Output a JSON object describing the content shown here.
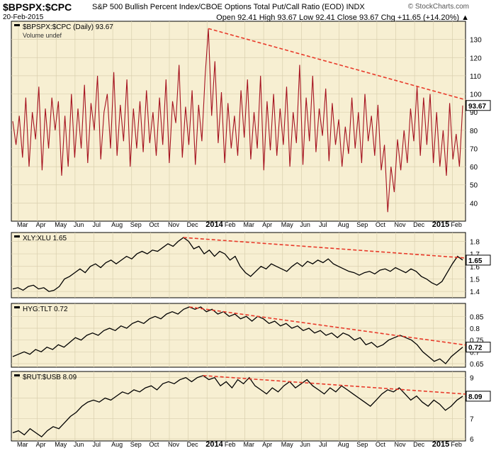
{
  "header": {
    "symbol": "$BPSPX:$CPC",
    "description": "S&P 500 Bullish Percent Index/CBOE Options Total Put/Call Ratio (EOD)  INDX",
    "date": "20-Feb-2015",
    "ohlc": "Open 92.41  High 93.67  Low 92.41  Close 93.67  Chg +11.65 (+14.20%) ▲",
    "source": "© StockCharts.com"
  },
  "colors": {
    "panel_bg": "#f7efd2",
    "grid": "#d9cfae",
    "border": "#000000",
    "bar_color": "#a5121f",
    "trend": "#e83a2a",
    "line": "#000000"
  },
  "x_axis": {
    "labels": [
      "Mar",
      "Apr",
      "May",
      "Jun",
      "Jul",
      "Aug",
      "Sep",
      "Oct",
      "Nov",
      "Dec",
      "2014",
      "Feb",
      "Mar",
      "Apr",
      "May",
      "Jun",
      "Jul",
      "Aug",
      "Sep",
      "Oct",
      "Nov",
      "Dec",
      "2015",
      "Feb"
    ],
    "bold_labels": [
      "2014",
      "2015"
    ]
  },
  "chart_data": [
    {
      "type": "line",
      "name": "panel-bpspx-cpc",
      "legend": "$BPSPX:$CPC (Daily) 93.67",
      "legend2": "Volume undef",
      "ylim": [
        30,
        140
      ],
      "yticks": [
        40,
        50,
        60,
        70,
        80,
        90,
        100,
        110,
        120,
        130
      ],
      "last_value": "93.67",
      "series": [
        {
          "values": [
            85,
            72,
            88,
            65,
            98,
            60,
            90,
            75,
            104,
            58,
            92,
            70,
            98,
            80,
            96,
            55,
            88,
            60,
            100,
            65,
            92,
            70,
            105,
            62,
            95,
            80,
            110,
            64,
            90,
            100,
            70,
            112,
            66,
            94,
            74,
            108,
            60,
            92,
            70,
            96,
            68,
            102,
            73,
            90,
            66,
            98,
            72,
            108,
            62,
            96,
            84,
            116,
            65,
            93,
            72,
            102,
            61,
            94,
            74,
            110,
            136,
            88,
            118,
            73,
            101,
            62,
            95,
            70,
            88,
            66,
            102,
            76,
            108,
            64,
            90,
            70,
            110,
            58,
            96,
            69,
            100,
            66,
            92,
            72,
            104,
            60,
            90,
            73,
            116,
            61,
            98,
            74,
            110,
            68,
            92,
            77,
            103,
            63,
            95,
            72,
            86,
            60,
            82,
            67,
            98,
            70,
            90,
            62,
            100,
            74,
            88,
            66,
            94,
            58,
            72,
            35,
            60,
            46,
            75,
            58,
            80,
            62,
            92,
            74,
            104,
            66,
            98,
            72,
            100,
            62,
            90,
            60,
            80,
            55,
            95,
            64,
            78,
            60,
            93.67
          ]
        }
      ]
    },
    {
      "type": "line",
      "name": "panel-xly-xlu",
      "legend": "XLY:XLU 1.65",
      "ylim": [
        1.35,
        1.87
      ],
      "yticks": [
        1.4,
        1.5,
        1.6,
        1.7,
        1.8
      ],
      "last_value": "1.65",
      "series": [
        {
          "values": [
            1.42,
            1.43,
            1.41,
            1.44,
            1.45,
            1.42,
            1.43,
            1.4,
            1.41,
            1.44,
            1.5,
            1.52,
            1.55,
            1.58,
            1.55,
            1.6,
            1.62,
            1.59,
            1.63,
            1.65,
            1.62,
            1.65,
            1.68,
            1.66,
            1.7,
            1.72,
            1.7,
            1.73,
            1.72,
            1.75,
            1.78,
            1.76,
            1.8,
            1.83,
            1.8,
            1.74,
            1.76,
            1.7,
            1.73,
            1.68,
            1.72,
            1.7,
            1.65,
            1.68,
            1.6,
            1.55,
            1.52,
            1.56,
            1.6,
            1.58,
            1.62,
            1.6,
            1.58,
            1.56,
            1.6,
            1.63,
            1.6,
            1.64,
            1.62,
            1.65,
            1.63,
            1.66,
            1.62,
            1.6,
            1.58,
            1.56,
            1.55,
            1.53,
            1.55,
            1.56,
            1.54,
            1.57,
            1.58,
            1.56,
            1.59,
            1.57,
            1.55,
            1.58,
            1.56,
            1.52,
            1.5,
            1.47,
            1.45,
            1.48,
            1.55,
            1.62,
            1.68,
            1.65
          ]
        }
      ]
    },
    {
      "type": "line",
      "name": "panel-hyg-tlt",
      "legend": "HYG:TLT 0.72",
      "ylim": [
        0.635,
        0.905
      ],
      "yticks": [
        0.65,
        0.7,
        0.75,
        0.8,
        0.85
      ],
      "last_value": "0.72",
      "series": [
        {
          "values": [
            0.68,
            0.69,
            0.7,
            0.69,
            0.71,
            0.7,
            0.72,
            0.71,
            0.73,
            0.72,
            0.74,
            0.76,
            0.75,
            0.77,
            0.78,
            0.77,
            0.79,
            0.8,
            0.79,
            0.81,
            0.8,
            0.82,
            0.83,
            0.82,
            0.84,
            0.85,
            0.84,
            0.86,
            0.87,
            0.86,
            0.88,
            0.89,
            0.88,
            0.89,
            0.87,
            0.88,
            0.86,
            0.87,
            0.85,
            0.86,
            0.84,
            0.85,
            0.83,
            0.85,
            0.84,
            0.82,
            0.83,
            0.81,
            0.82,
            0.8,
            0.81,
            0.79,
            0.8,
            0.78,
            0.79,
            0.77,
            0.78,
            0.76,
            0.78,
            0.77,
            0.75,
            0.76,
            0.73,
            0.74,
            0.72,
            0.73,
            0.75,
            0.76,
            0.77,
            0.76,
            0.75,
            0.73,
            0.7,
            0.68,
            0.66,
            0.67,
            0.65,
            0.68,
            0.7,
            0.72
          ]
        }
      ]
    },
    {
      "type": "line",
      "name": "panel-rut-usb",
      "legend": "$RUT:$USB 8.09",
      "ylim": [
        5.9,
        9.3
      ],
      "yticks": [
        6,
        7,
        8,
        9
      ],
      "last_value": "8.09",
      "series": [
        {
          "values": [
            6.3,
            6.4,
            6.2,
            6.5,
            6.3,
            6.1,
            6.4,
            6.6,
            6.5,
            6.8,
            7.1,
            7.3,
            7.6,
            7.8,
            7.9,
            7.8,
            8.0,
            7.9,
            8.1,
            8.3,
            8.2,
            8.4,
            8.3,
            8.5,
            8.6,
            8.4,
            8.7,
            8.8,
            8.7,
            8.9,
            9.0,
            8.8,
            9.0,
            9.1,
            8.9,
            9.0,
            8.6,
            8.8,
            8.5,
            8.9,
            8.7,
            9.0,
            8.6,
            8.4,
            8.2,
            8.5,
            8.3,
            8.6,
            8.8,
            8.5,
            8.7,
            8.9,
            8.6,
            8.4,
            8.2,
            8.5,
            8.3,
            8.6,
            8.4,
            8.2,
            8.0,
            7.8,
            7.6,
            7.9,
            8.2,
            8.4,
            8.3,
            8.5,
            8.2,
            7.9,
            8.1,
            7.8,
            7.6,
            7.9,
            7.7,
            7.4,
            7.6,
            7.9,
            8.09
          ]
        }
      ]
    }
  ]
}
